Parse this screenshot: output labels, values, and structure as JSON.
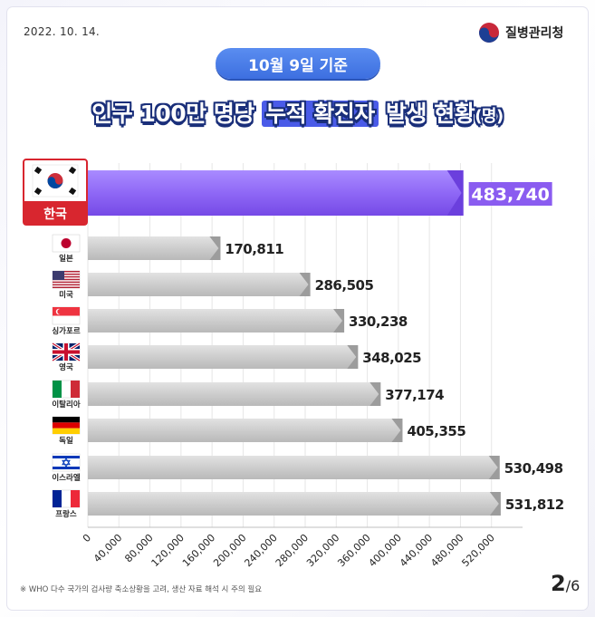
{
  "header": {
    "date": "2022. 10. 14.",
    "agency": "질병관리청",
    "basis_date": "10월 9일 기준",
    "title_pre": "인구 100만 명당 ",
    "title_highlight": "누적 확진자",
    "title_post": " 발생 현황",
    "title_unit": "(명)"
  },
  "chart_data": {
    "type": "bar",
    "orientation": "horizontal",
    "categories": [
      "한국",
      "일본",
      "미국",
      "싱가포르",
      "영국",
      "이탈리아",
      "독일",
      "이스라엘",
      "프랑스"
    ],
    "values": [
      483740,
      170811,
      286505,
      330238,
      348025,
      377174,
      405355,
      530498,
      531812
    ],
    "value_labels": [
      "483,740",
      "170,811",
      "286,505",
      "330,238",
      "348,025",
      "377,174",
      "405,355",
      "530,498",
      "531,812"
    ],
    "x_ticks": [
      "0",
      "40,000",
      "80,000",
      "120,000",
      "160,000",
      "200,000",
      "240,000",
      "280,000",
      "320,000",
      "360,000",
      "400,000",
      "440,000",
      "480,000",
      "520,000"
    ],
    "xlim": [
      0,
      560000
    ],
    "grid": true,
    "colors": {
      "highlight": "#8a5cf0",
      "bar": "#c7c7c7",
      "bar_end": "#9c9c9c",
      "korea_label_bg": "#d8262f"
    }
  },
  "footer": {
    "note": "※ WHO 다수 국가의 검사량 축소상황을 고려, 생산 자료 해석 시 주의 필요",
    "page_current": "2",
    "page_total": "/6"
  }
}
